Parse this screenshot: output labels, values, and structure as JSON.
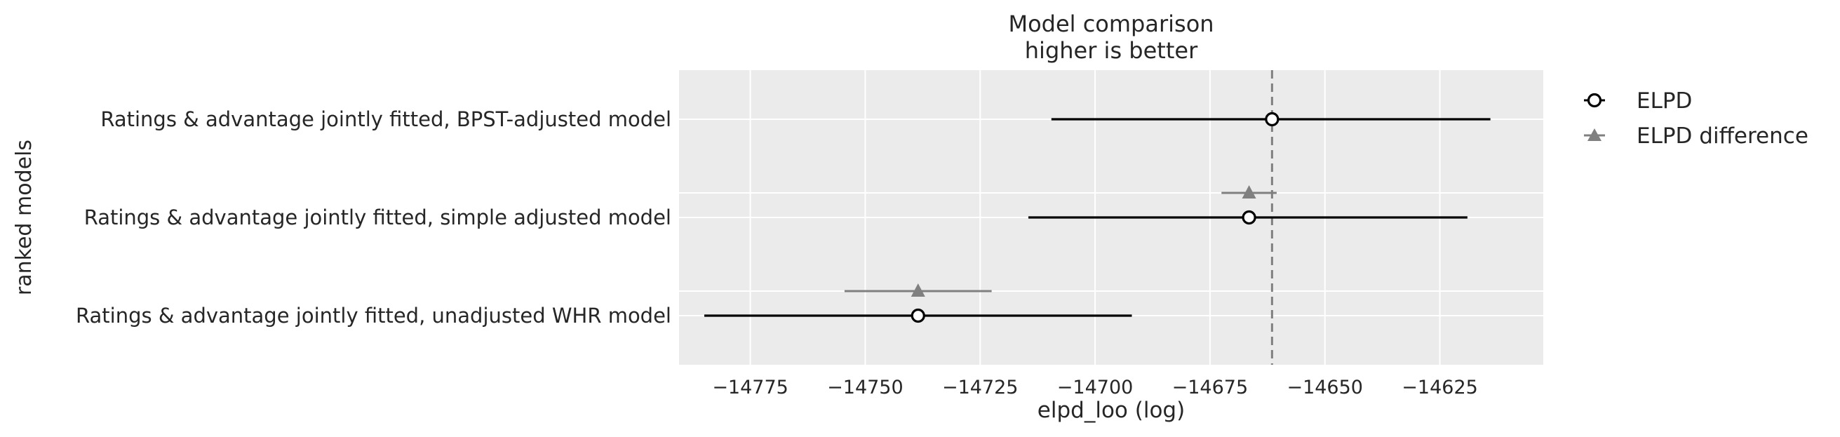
{
  "chart_data": {
    "type": "forest",
    "title": "Model comparison",
    "subtitle": "higher is better",
    "xlabel": "elpd_loo (log)",
    "ylabel": "ranked models",
    "xlim": [
      -14790.5,
      -14602.5
    ],
    "x_ticks": [
      -14775,
      -14750,
      -14725,
      -14700,
      -14675,
      -14650,
      -14625
    ],
    "x_tick_labels": [
      "−14775",
      "−14750",
      "−14725",
      "−14700",
      "−14675",
      "−14650",
      "−14625"
    ],
    "grid": true,
    "reference_line": -14661.5,
    "legend_position": "outside-right",
    "legend": [
      {
        "label": "ELPD",
        "marker": "open-circle",
        "color": "#000000"
      },
      {
        "label": "ELPD difference",
        "marker": "triangle",
        "color": "#808080"
      }
    ],
    "models": [
      {
        "label": "Ratings & advantage jointly fitted, BPST-adjusted model",
        "elpd": -14661.5,
        "elpd_low": -14709.5,
        "elpd_high": -14614.0,
        "diff": null,
        "diff_low": null,
        "diff_high": null
      },
      {
        "label": "Ratings & advantage jointly fitted, simple adjusted model",
        "elpd": -14666.5,
        "elpd_low": -14714.5,
        "elpd_high": -14619.0,
        "diff": -14666.5,
        "diff_low": -14672.5,
        "diff_high": -14660.5
      },
      {
        "label": "Ratings & advantage jointly fitted, unadjusted WHR model",
        "elpd": -14738.5,
        "elpd_low": -14785.0,
        "elpd_high": -14692.0,
        "diff": -14738.5,
        "diff_low": -14754.5,
        "diff_high": -14722.5
      }
    ],
    "colors": {
      "panel_bg": "#ebebeb",
      "grid": "#ffffff",
      "elpd": "#000000",
      "diff": "#808080",
      "reference": "#808080"
    }
  }
}
